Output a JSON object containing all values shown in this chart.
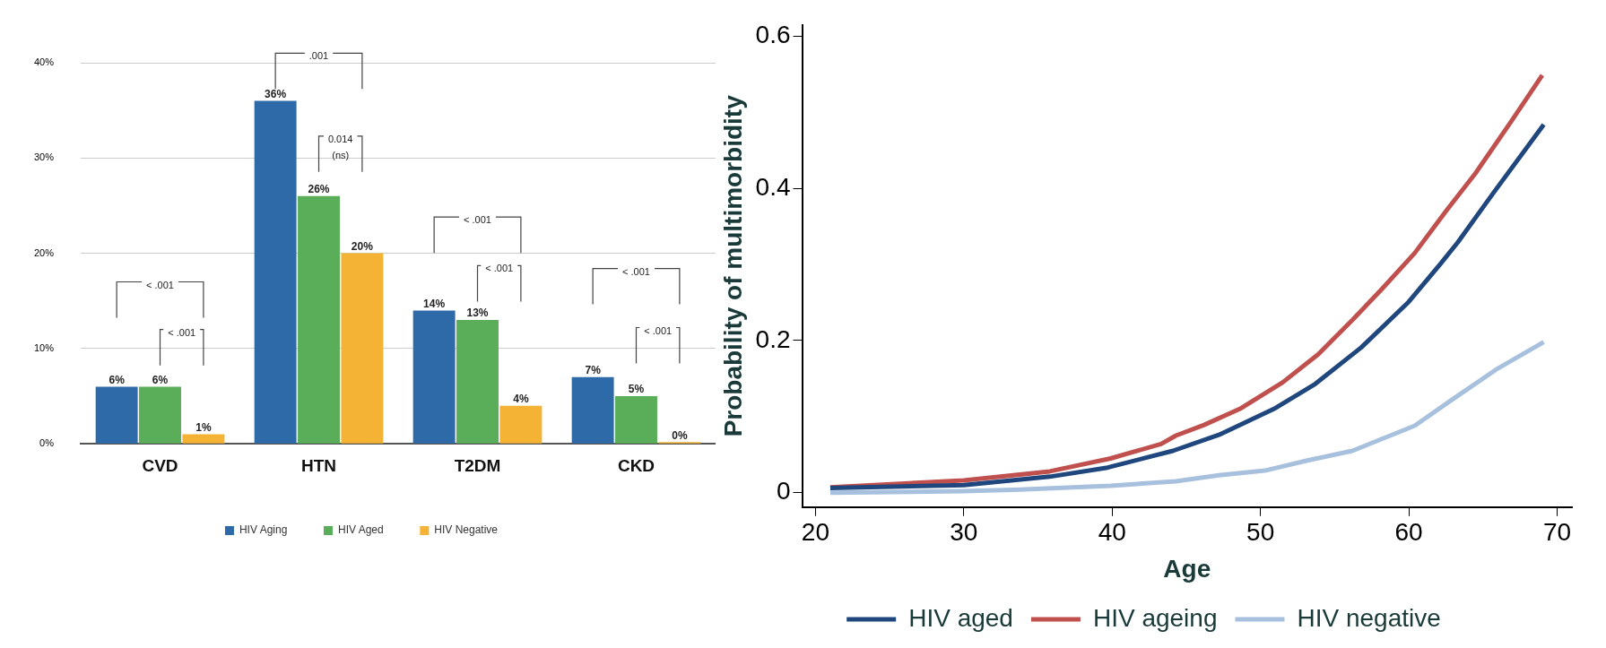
{
  "chart_data": [
    {
      "type": "bar",
      "categories": [
        "CVD",
        "HTN",
        "T2DM",
        "CKD"
      ],
      "series": [
        {
          "name": "HIV Aging",
          "color": "#2f6aa8",
          "values": [
            6,
            36,
            14,
            7
          ],
          "value_labels": [
            "6%",
            "36%",
            "14%",
            "7%"
          ]
        },
        {
          "name": "HIV Aged",
          "color": "#5aae5a",
          "values": [
            6,
            26,
            13,
            5
          ],
          "value_labels": [
            "6%",
            "26%",
            "13%",
            "5%"
          ]
        },
        {
          "name": "HIV Negative",
          "color": "#f5b335",
          "values": [
            1,
            20,
            4,
            0
          ],
          "value_labels": [
            "1%",
            "20%",
            "4%",
            "0%"
          ]
        }
      ],
      "ylim": [
        0,
        40
      ],
      "yticks": [
        {
          "value": 0,
          "label": "0%"
        },
        {
          "value": 10,
          "label": "10%"
        },
        {
          "value": 20,
          "label": "20%"
        },
        {
          "value": 30,
          "label": "30%"
        },
        {
          "value": 40,
          "label": "40%"
        }
      ],
      "grid": "y",
      "legend": "bottom",
      "annotations": [
        "< .001",
        "< .001",
        ".001",
        "0.014 (ns)",
        "< .001",
        "< .001",
        "< .001",
        "< .001"
      ]
    },
    {
      "type": "line",
      "xlabel": "Age",
      "ylabel": "Probability of multimorbidity",
      "series": [
        {
          "name": "HIV aged",
          "color": "#1f477d",
          "x": [
            21,
            30,
            35.8,
            39.7,
            44.1,
            47.2,
            50.9,
            53.7,
            56.8,
            60,
            62.1,
            63.3,
            65.7,
            69.1
          ],
          "values": [
            0.006,
            0.01,
            0.021,
            0.033,
            0.055,
            0.076,
            0.11,
            0.143,
            0.191,
            0.251,
            0.3,
            0.329,
            0.394,
            0.484
          ]
        },
        {
          "name": "HIV ageing",
          "color": "#c0504d",
          "x": [
            21,
            30,
            35.8,
            39.9,
            43.3,
            44.3,
            46.2,
            48.6,
            51.5,
            53.9,
            56.2,
            58.2,
            60.4,
            62.5,
            64.5,
            66.9,
            69
          ],
          "values": [
            0.007,
            0.016,
            0.028,
            0.045,
            0.064,
            0.075,
            0.089,
            0.11,
            0.145,
            0.182,
            0.227,
            0.268,
            0.315,
            0.37,
            0.42,
            0.488,
            0.549
          ]
        },
        {
          "name": "HIV negative",
          "color": "#a7c0de",
          "x": [
            21,
            30,
            33.8,
            39.9,
            44.3,
            47.2,
            50.3,
            53.1,
            56.2,
            60.4,
            62.9,
            65.9,
            69.1
          ],
          "values": [
            0,
            0.002,
            0.004,
            0.009,
            0.015,
            0.023,
            0.029,
            0.042,
            0.055,
            0.088,
            0.122,
            0.162,
            0.198
          ]
        }
      ],
      "xlim": [
        19.1,
        71
      ],
      "xticks": [
        20,
        30,
        40,
        50,
        60,
        70
      ],
      "ylim": [
        -0.019,
        0.615
      ],
      "yticks": [
        0,
        0.2,
        0.4,
        0.6
      ],
      "legend": "bottom",
      "marker": "none",
      "line_style": "solid"
    }
  ]
}
